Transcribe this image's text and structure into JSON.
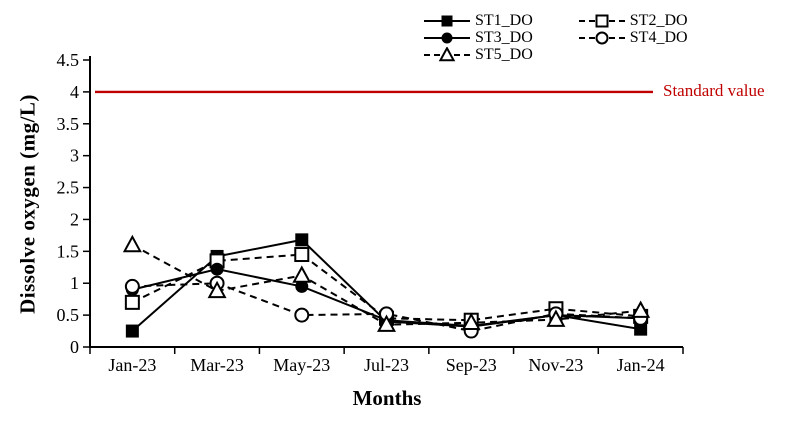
{
  "figure": {
    "kind": "line chart with reference line",
    "background": "#ffffff"
  },
  "chart_data": {
    "type": "line",
    "title": "",
    "xlabel": "Months",
    "ylabel": "Dissolve oxygen (mg/L)",
    "categories": [
      "Jan-23",
      "Mar-23",
      "May-23",
      "Jul-23",
      "Sep-23",
      "Nov-23",
      "Jan-24"
    ],
    "series": [
      {
        "name": "ST1_DO",
        "line": "solid",
        "marker": "filled-square",
        "values": [
          0.25,
          1.42,
          1.68,
          0.4,
          0.32,
          0.5,
          0.28
        ]
      },
      {
        "name": "ST2_DO",
        "line": "dashed",
        "marker": "open-square",
        "values": [
          0.7,
          1.35,
          1.45,
          0.45,
          0.42,
          0.6,
          0.48
        ]
      },
      {
        "name": "ST3_DO",
        "line": "solid",
        "marker": "filled-circle",
        "values": [
          0.9,
          1.22,
          0.95,
          0.42,
          0.33,
          0.5,
          0.45
        ]
      },
      {
        "name": "ST4_DO",
        "line": "dashed",
        "marker": "open-circle",
        "values": [
          0.95,
          1.0,
          0.5,
          0.52,
          0.25,
          0.52,
          0.45
        ]
      },
      {
        "name": "ST5_DO",
        "line": "dashed",
        "marker": "open-triangle",
        "values": [
          1.6,
          0.88,
          1.12,
          0.35,
          0.38,
          0.43,
          0.57
        ]
      }
    ],
    "reference_line": {
      "label": "Standard value",
      "value": 4.0,
      "color": "#C00000"
    },
    "series_color": "#000000",
    "ylim": [
      0,
      4.5
    ],
    "ytick_step": 0.5,
    "ytick_labels": [
      "0",
      "0.5",
      "1",
      "1.5",
      "2",
      "2.5",
      "3",
      "3.5",
      "4",
      "4.5"
    ],
    "grid": false,
    "legend_position": "top-right"
  }
}
